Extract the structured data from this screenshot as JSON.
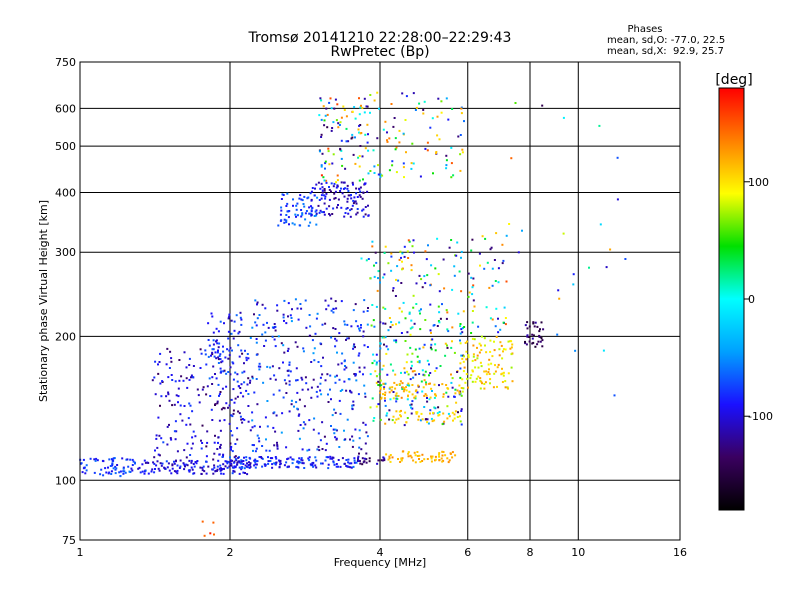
{
  "chart_data": {
    "type": "scatter",
    "title": "Tromsø 20141210 22:28:00–22:29:43",
    "subtitle": "RwPretec (Bp)",
    "stats": {
      "header": "Phases",
      "line_o": "mean, sd,O: -77.0, 22.5",
      "line_x": "mean, sd,X:  92.9, 25.7"
    },
    "xlabel": "Frequency [MHz]",
    "ylabel": "Stationary phase Virtual Height [km]",
    "x_scale": "log",
    "y_scale": "log",
    "xlim": [
      1,
      16
    ],
    "ylim": [
      75,
      750
    ],
    "x_ticks": [
      1,
      2,
      4,
      6,
      8,
      10,
      16
    ],
    "y_ticks": [
      75,
      100,
      200,
      300,
      400,
      500,
      600,
      750
    ],
    "x_grid": [
      2,
      4,
      6,
      8,
      10
    ],
    "y_grid": [
      100,
      200,
      300,
      400,
      500,
      600
    ],
    "grid": true,
    "colorbar": {
      "label": "[deg]",
      "range": [
        -180,
        180
      ],
      "ticks": [
        100,
        0,
        -100
      ],
      "colors": [
        "#000000",
        "#3a0060",
        "#1a10ff",
        "#00a0ff",
        "#00ffff",
        "#00e000",
        "#ffff00",
        "#ff8000",
        "#ff0000"
      ]
    },
    "clusters": [
      {
        "f": [
          1.0,
          1.3
        ],
        "h": [
          102,
          112
        ],
        "phase": [
          -100,
          -55
        ],
        "n": 70
      },
      {
        "f": [
          1.3,
          2.2
        ],
        "h": [
          103,
          110
        ],
        "phase": [
          -120,
          -70
        ],
        "n": 140
      },
      {
        "f": [
          2.0,
          3.6
        ],
        "h": [
          106,
          112
        ],
        "phase": [
          -110,
          -60
        ],
        "n": 150
      },
      {
        "f": [
          3.6,
          4.1
        ],
        "h": [
          108,
          114
        ],
        "phase": [
          -150,
          -100
        ],
        "n": 25
      },
      {
        "f": [
          4.1,
          5.7
        ],
        "h": [
          109,
          115
        ],
        "phase": [
          100,
          135
        ],
        "n": 60
      },
      {
        "f": [
          1.4,
          2.2
        ],
        "h": [
          110,
          190
        ],
        "phase": [
          -140,
          -70
        ],
        "n": 200
      },
      {
        "f": [
          1.8,
          2.2
        ],
        "h": [
          150,
          225
        ],
        "phase": [
          -115,
          -60
        ],
        "n": 90
      },
      {
        "f": [
          2.2,
          3.8
        ],
        "h": [
          115,
          240
        ],
        "phase": [
          -130,
          -45
        ],
        "n": 330
      },
      {
        "f": [
          2.5,
          3.0
        ],
        "h": [
          340,
          400
        ],
        "phase": [
          -95,
          -50
        ],
        "n": 70
      },
      {
        "f": [
          2.9,
          3.8
        ],
        "h": [
          355,
          420
        ],
        "phase": [
          -130,
          -70
        ],
        "n": 120
      },
      {
        "f": [
          3.0,
          3.8
        ],
        "h": [
          420,
          630
        ],
        "phase": [
          -150,
          170
        ],
        "n": 90
      },
      {
        "f": [
          3.6,
          5.9
        ],
        "h": [
          430,
          650
        ],
        "phase": [
          -140,
          150
        ],
        "n": 100
      },
      {
        "f": [
          3.8,
          5.9
        ],
        "h": [
          130,
          235
        ],
        "phase": [
          -150,
          140
        ],
        "n": 260
      },
      {
        "f": [
          4.0,
          5.8
        ],
        "h": [
          148,
          160
        ],
        "phase": [
          100,
          130
        ],
        "n": 60
      },
      {
        "f": [
          4.2,
          5.8
        ],
        "h": [
          132,
          140
        ],
        "phase": [
          95,
          120
        ],
        "n": 35
      },
      {
        "f": [
          3.6,
          5.9
        ],
        "h": [
          240,
          320
        ],
        "phase": [
          -140,
          150
        ],
        "n": 80
      },
      {
        "f": [
          5.8,
          7.4
        ],
        "h": [
          155,
          200
        ],
        "phase": [
          70,
          130
        ],
        "n": 110
      },
      {
        "f": [
          6.0,
          7.2
        ],
        "h": [
          200,
          330
        ],
        "phase": [
          -140,
          160
        ],
        "n": 50
      },
      {
        "f": [
          7.8,
          8.5
        ],
        "h": [
          190,
          215
        ],
        "phase": [
          -160,
          -110
        ],
        "n": 35
      },
      {
        "f": [
          1.75,
          1.9
        ],
        "h": [
          76,
          82
        ],
        "phase": [
          140,
          175
        ],
        "n": 5
      },
      {
        "f": [
          7.0,
          12.5
        ],
        "h": [
          145,
          650
        ],
        "phase": [
          -160,
          170
        ],
        "n": 25
      }
    ]
  }
}
